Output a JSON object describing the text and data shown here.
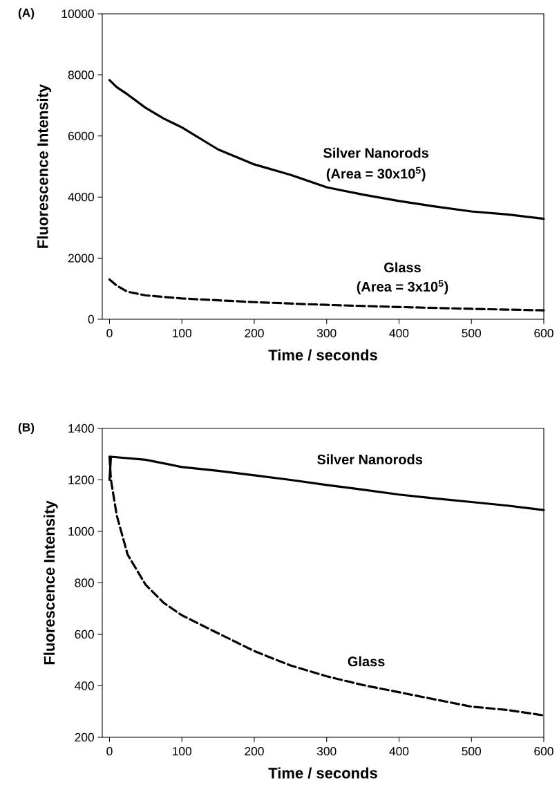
{
  "chart_data": [
    {
      "type": "line",
      "title": "(A)",
      "xlabel": "Time / seconds",
      "ylabel": "Fluorescence Intensity",
      "xlim": [
        -10,
        600
      ],
      "ylim": [
        0,
        10000
      ],
      "xticks": [
        0,
        100,
        200,
        300,
        400,
        500,
        600
      ],
      "yticks": [
        0,
        2000,
        4000,
        6000,
        8000,
        10000
      ],
      "marker": "none",
      "series": [
        {
          "name": "Silver Nanorods",
          "color": "#000000",
          "line_style": "solid",
          "x": [
            0,
            10,
            25,
            50,
            75,
            100,
            150,
            200,
            250,
            300,
            350,
            400,
            450,
            500,
            550,
            600
          ],
          "values": [
            7830,
            7600,
            7360,
            6920,
            6570,
            6280,
            5560,
            5070,
            4730,
            4320,
            4080,
            3870,
            3690,
            3530,
            3430,
            3290
          ]
        },
        {
          "name": "Glass",
          "color": "#000000",
          "line_style": "dashed",
          "x": [
            0,
            10,
            25,
            50,
            100,
            200,
            300,
            400,
            500,
            600
          ],
          "values": [
            1300,
            1100,
            900,
            780,
            680,
            560,
            470,
            400,
            340,
            290
          ]
        }
      ],
      "annotations": [
        "(Area = 30x10$^{5}$)",
        "(Area = 3x10$^{5}$)"
      ]
    },
    {
      "type": "line",
      "title": "(B)",
      "xlabel": "Time / seconds",
      "ylabel": "Fluorescence Intensity",
      "xlim": [
        -10,
        600
      ],
      "ylim": [
        200,
        1400
      ],
      "xticks": [
        0,
        100,
        200,
        300,
        400,
        500,
        600
      ],
      "yticks": [
        200,
        400,
        600,
        800,
        1000,
        1200,
        1400
      ],
      "marker": "none",
      "series": [
        {
          "name": "Silver Nanorods",
          "color": "#000000",
          "line_style": "solid",
          "x": [
            0,
            2,
            50,
            100,
            150,
            200,
            250,
            300,
            350,
            400,
            450,
            500,
            550,
            600
          ],
          "values": [
            1200,
            1290,
            1278,
            1250,
            1235,
            1218,
            1200,
            1180,
            1162,
            1143,
            1128,
            1114,
            1100,
            1083
          ]
        },
        {
          "name": "Glass",
          "color": "#000000",
          "line_style": "dashed",
          "x": [
            0,
            2,
            10,
            25,
            50,
            75,
            100,
            150,
            200,
            250,
            300,
            350,
            400,
            450,
            500,
            550,
            600
          ],
          "values": [
            1290,
            1200,
            1062,
            910,
            792,
            722,
            674,
            604,
            535,
            479,
            437,
            403,
            375,
            347,
            319,
            306,
            285
          ]
        }
      ]
    }
  ]
}
